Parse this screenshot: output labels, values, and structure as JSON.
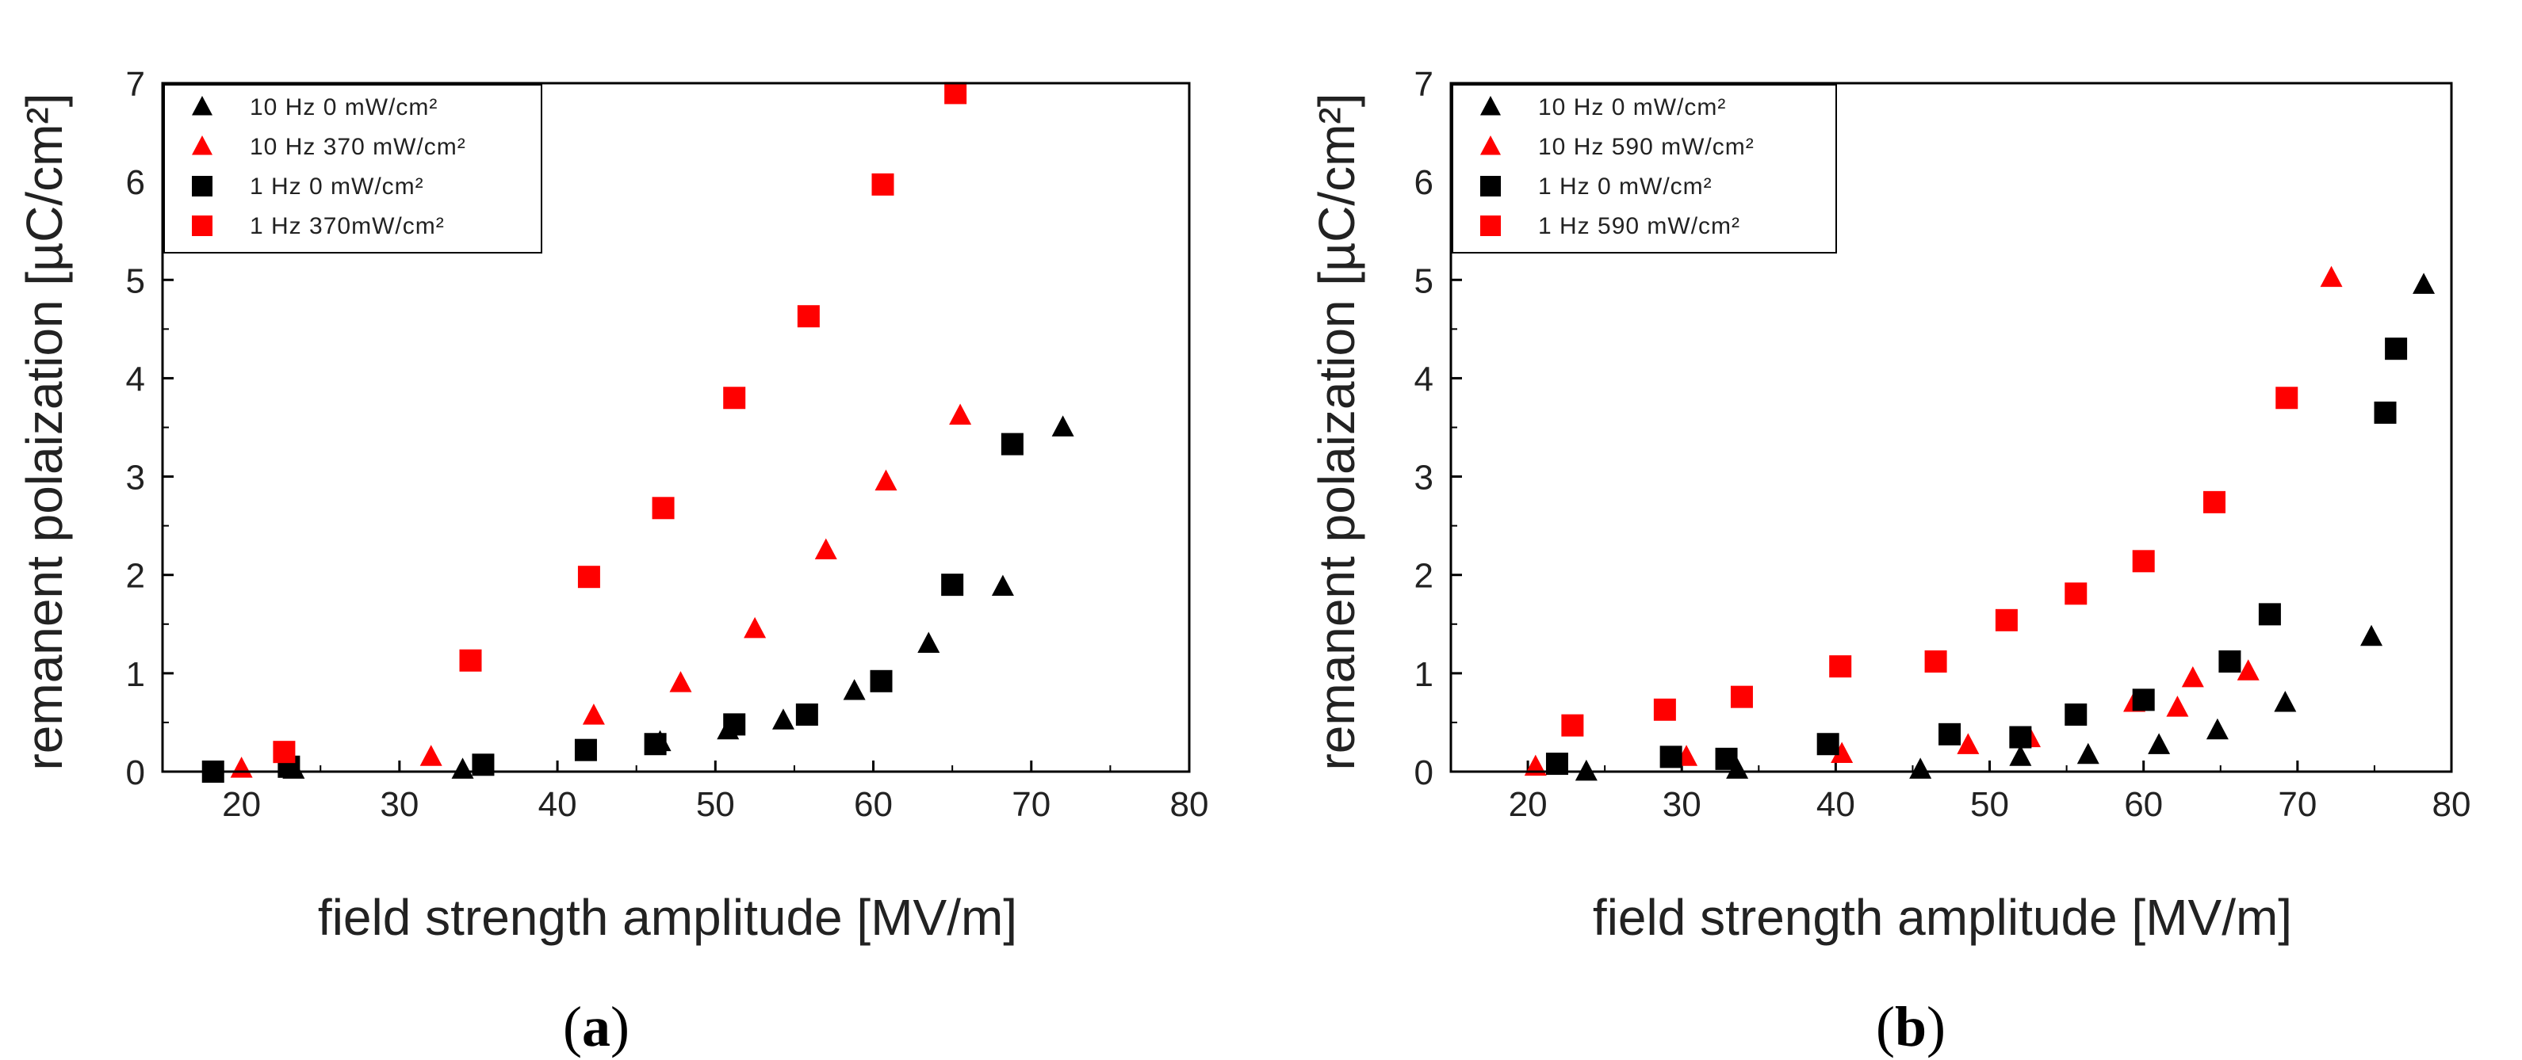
{
  "chart_data": [
    {
      "type": "scatter",
      "panel_label": "a",
      "xlabel": "field strength amplitude [MV/m]",
      "ylabel": "remanent polaization [µC/cm²]",
      "xlim": [
        15,
        80
      ],
      "ylim": [
        0,
        7
      ],
      "xticks": [
        "20",
        "30",
        "40",
        "50",
        "60",
        "70",
        "80"
      ],
      "yticks": [
        "0",
        "1",
        "2",
        "3",
        "4",
        "5",
        "6",
        "7"
      ],
      "legend_position": "top-left",
      "series": [
        {
          "name": "10 Hz 0 mW/cm²",
          "marker": "triangle",
          "color": "#000000",
          "x": [
            23.3,
            34.0,
            46.5,
            50.8,
            54.3,
            58.8,
            63.5,
            68.2,
            72.0
          ],
          "y": [
            0.02,
            0.02,
            0.3,
            0.42,
            0.52,
            0.82,
            1.3,
            1.88,
            3.5
          ]
        },
        {
          "name": "10 Hz 370 mW/cm²",
          "marker": "triangle",
          "color": "#ff0000",
          "x": [
            20.0,
            32.0,
            42.3,
            47.8,
            52.5,
            57.0,
            60.8,
            65.5
          ],
          "y": [
            0.03,
            0.15,
            0.57,
            0.9,
            1.45,
            2.25,
            2.95,
            3.62
          ]
        },
        {
          "name": "1 Hz 0 mW/cm²",
          "marker": "square",
          "color": "#000000",
          "x": [
            18.2,
            23.0,
            35.3,
            41.8,
            46.2,
            51.2,
            55.8,
            60.5,
            65.0,
            68.8
          ],
          "y": [
            0.0,
            0.05,
            0.07,
            0.22,
            0.28,
            0.48,
            0.58,
            0.92,
            1.9,
            3.33
          ]
        },
        {
          "name": "1 Hz 370mW/cm²",
          "marker": "square",
          "color": "#ff0000",
          "x": [
            22.7,
            34.5,
            42.0,
            46.7,
            51.2,
            55.9,
            60.6,
            65.2
          ],
          "y": [
            0.2,
            1.13,
            1.98,
            2.68,
            3.8,
            4.63,
            5.97,
            6.9
          ]
        }
      ]
    },
    {
      "type": "scatter",
      "panel_label": "b",
      "xlabel": "field strength amplitude [MV/m]",
      "ylabel": "remanent polaization [µC/cm²]",
      "xlim": [
        15,
        80
      ],
      "ylim": [
        0,
        7
      ],
      "xticks": [
        "20",
        "30",
        "40",
        "50",
        "60",
        "70",
        "80"
      ],
      "yticks": [
        "0",
        "1",
        "2",
        "3",
        "4",
        "5",
        "6",
        "7"
      ],
      "legend_position": "top-left",
      "series": [
        {
          "name": "10 Hz 0 mW/cm²",
          "marker": "triangle",
          "color": "#000000",
          "x": [
            23.8,
            33.6,
            45.5,
            52.0,
            56.4,
            61.0,
            64.8,
            69.2,
            74.8,
            78.2
          ],
          "y": [
            0.0,
            0.02,
            0.02,
            0.15,
            0.17,
            0.27,
            0.42,
            0.7,
            1.37,
            4.95
          ]
        },
        {
          "name": "10 Hz 590 mW/cm²",
          "marker": "triangle",
          "color": "#ff0000",
          "x": [
            20.5,
            30.3,
            40.4,
            48.6,
            52.6,
            59.4,
            62.2,
            63.2,
            66.8,
            72.2
          ],
          "y": [
            0.05,
            0.15,
            0.18,
            0.27,
            0.34,
            0.7,
            0.65,
            0.95,
            1.02,
            5.02
          ]
        },
        {
          "name": "1 Hz 0 mW/cm²",
          "marker": "square",
          "color": "#000000",
          "x": [
            21.9,
            29.3,
            32.9,
            39.5,
            47.4,
            52.0,
            55.6,
            60.0,
            65.6,
            68.2,
            75.7,
            76.4
          ],
          "y": [
            0.08,
            0.15,
            0.13,
            0.28,
            0.38,
            0.35,
            0.58,
            0.73,
            1.12,
            1.6,
            3.65,
            4.3
          ]
        },
        {
          "name": "1 Hz 590 mW/cm²",
          "marker": "square",
          "color": "#ff0000",
          "x": [
            22.9,
            28.9,
            33.9,
            40.3,
            46.5,
            51.1,
            55.6,
            60.0,
            64.6,
            69.3
          ],
          "y": [
            0.47,
            0.63,
            0.76,
            1.07,
            1.12,
            1.54,
            1.81,
            2.14,
            2.74,
            3.8
          ]
        }
      ]
    }
  ]
}
